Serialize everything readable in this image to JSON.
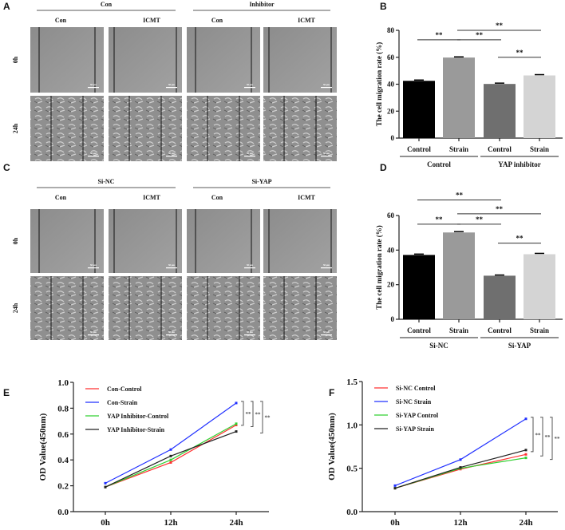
{
  "micrographs": [
    {
      "panel": "A",
      "groups": [
        "Con",
        "Inhibitor"
      ],
      "columns": [
        "Con",
        "ICMT",
        "Con",
        "ICMT"
      ],
      "rows": [
        "0h",
        "24h"
      ],
      "scale_bar": "50 μm"
    },
    {
      "panel": "C",
      "groups": [
        "Si-NC",
        "Si-YAP"
      ],
      "columns": [
        "Con",
        "ICMT",
        "Con",
        "ICMT"
      ],
      "rows": [
        "0h",
        "24h"
      ],
      "scale_bar": "50 μm"
    }
  ],
  "chart_data": [
    {
      "panel": "B",
      "type": "bar",
      "ylabel": "The cell migration rate (%)",
      "ylim": [
        0,
        80
      ],
      "yticks": [
        0,
        20,
        40,
        60,
        80
      ],
      "categories": [
        "Control",
        "Strain",
        "Control",
        "Strain"
      ],
      "groups": [
        "Control",
        "YAP inhibitor"
      ],
      "values": [
        42.5,
        59.8,
        40.2,
        46.5
      ],
      "errors": [
        0.6,
        0.5,
        0.6,
        0.6
      ],
      "colors": [
        "#000000",
        "#9a9a9a",
        "#6f6f6f",
        "#d4d4d4"
      ],
      "significance": [
        {
          "from": 0,
          "to": 1,
          "level": 73,
          "label": "**"
        },
        {
          "from": 1,
          "to": 2,
          "level": 73,
          "label": "**"
        },
        {
          "from": 1,
          "to": 3,
          "level": 80,
          "label": "**"
        },
        {
          "from": 2,
          "to": 3,
          "level": 60,
          "label": "**"
        }
      ]
    },
    {
      "panel": "D",
      "type": "bar",
      "ylabel": "The cell migration rate (%)",
      "ylim": [
        0,
        60
      ],
      "yticks": [
        0,
        20,
        40,
        60
      ],
      "categories": [
        "Control",
        "Strain",
        "Control",
        "Strain"
      ],
      "groups": [
        "Si-NC",
        "Si-YAP"
      ],
      "values": [
        37.2,
        50.2,
        25.2,
        37.6
      ],
      "errors": [
        0.5,
        0.5,
        0.4,
        0.5
      ],
      "colors": [
        "#000000",
        "#9a9a9a",
        "#6f6f6f",
        "#d4d4d4"
      ],
      "significance": [
        {
          "from": 0,
          "to": 2,
          "level": 69,
          "label": "**"
        },
        {
          "from": 0,
          "to": 1,
          "level": 55,
          "label": "**"
        },
        {
          "from": 1,
          "to": 2,
          "level": 55,
          "label": "**"
        },
        {
          "from": 1,
          "to": 3,
          "level": 61,
          "label": "**"
        },
        {
          "from": 2,
          "to": 3,
          "level": 44,
          "label": "**"
        }
      ]
    },
    {
      "panel": "E",
      "type": "line",
      "ylabel": "OD Value(450nm)",
      "ylim": [
        0,
        1.0
      ],
      "yticks": [
        "0.0",
        "0.2",
        "0.4",
        "0.6",
        "0.8",
        "1.0"
      ],
      "x": [
        "0h",
        "12h",
        "24h"
      ],
      "series": [
        {
          "name": "Con-Control",
          "color": "#ff3030",
          "values": [
            0.19,
            0.38,
            0.67
          ]
        },
        {
          "name": "Con-Strain",
          "color": "#2030ff",
          "values": [
            0.22,
            0.48,
            0.84
          ]
        },
        {
          "name": "YAP Inhibitor-Control",
          "color": "#30d030",
          "values": [
            0.19,
            0.4,
            0.68
          ]
        },
        {
          "name": "YAP Inhibitor-Strain",
          "color": "#222222",
          "values": [
            0.19,
            0.43,
            0.62
          ]
        }
      ],
      "comparisons": [
        {
          "a": 1,
          "b": 2,
          "label": "**"
        },
        {
          "a": 1,
          "b": 0,
          "label": "**"
        },
        {
          "a": 1,
          "b": 3,
          "label": "**"
        }
      ],
      "legend": "top-left"
    },
    {
      "panel": "F",
      "type": "line",
      "ylabel": "OD Value(450nm)",
      "ylim": [
        0,
        1.5
      ],
      "yticks": [
        "0.0",
        "0.5",
        "1.0",
        "1.5"
      ],
      "x": [
        "0h",
        "12h",
        "24h"
      ],
      "series": [
        {
          "name": "Si-NC Control",
          "color": "#ff3030",
          "values": [
            0.27,
            0.49,
            0.66
          ]
        },
        {
          "name": "Si-NC Strain",
          "color": "#2030ff",
          "values": [
            0.3,
            0.6,
            1.07
          ]
        },
        {
          "name": "Si-YAP Control",
          "color": "#30d030",
          "values": [
            0.27,
            0.5,
            0.62
          ]
        },
        {
          "name": "Si-YAP Strain",
          "color": "#222222",
          "values": [
            0.27,
            0.51,
            0.71
          ]
        }
      ],
      "comparisons": [
        {
          "a": 1,
          "b": 3,
          "label": "**"
        },
        {
          "a": 1,
          "b": 0,
          "label": "**"
        },
        {
          "a": 1,
          "b": 2,
          "label": "**"
        }
      ],
      "legend": "top-left"
    }
  ]
}
